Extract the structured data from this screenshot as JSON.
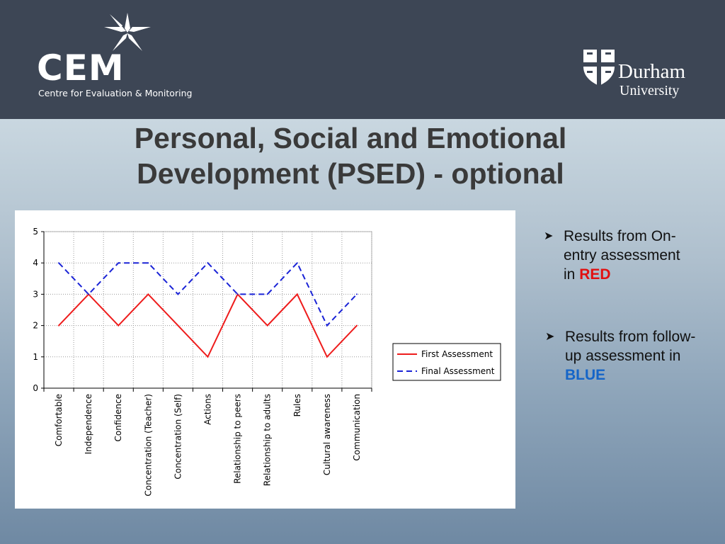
{
  "header": {
    "cem_logo_text": "CEM",
    "cem_subtitle": "Centre for Evaluation & Monitoring",
    "durham_name": "Durham",
    "durham_university": "University"
  },
  "slide": {
    "title_line1": "Personal, Social and Emotional",
    "title_line2": "Development (PSED) - optional"
  },
  "bullets": [
    {
      "line1": "Results from On-",
      "line2": "entry assessment",
      "line3_prefix": "in ",
      "highlight": "RED"
    },
    {
      "line1": "Results from follow-",
      "line2": "up assessment in",
      "highlight": "BLUE"
    }
  ],
  "colors": {
    "first_series": "#ee1c1c",
    "final_series": "#1a23d6",
    "highlight_red": "#e21010",
    "highlight_blue": "#1565c8"
  },
  "chart_data": {
    "type": "line",
    "categories": [
      "Comfortable",
      "Independence",
      "Confidence",
      "Concentration (Teacher)",
      "Concentration (Self)",
      "Actions",
      "Relationship to peers",
      "Relationship to adults",
      "Rules",
      "Cultural awareness",
      "Communication"
    ],
    "series": [
      {
        "name": "First Assessment",
        "values": [
          2,
          3,
          2,
          3,
          2,
          1,
          3,
          2,
          3,
          1,
          2
        ],
        "color": "#ee1c1c",
        "style": "solid"
      },
      {
        "name": "Final Assessment",
        "values": [
          4,
          3,
          4,
          4,
          3,
          4,
          3,
          3,
          4,
          2,
          3
        ],
        "color": "#1a23d6",
        "style": "dashed"
      }
    ],
    "yticks": [
      0,
      1,
      2,
      3,
      4,
      5
    ],
    "ylim": [
      0,
      5
    ],
    "grid": true,
    "legend": "right"
  }
}
